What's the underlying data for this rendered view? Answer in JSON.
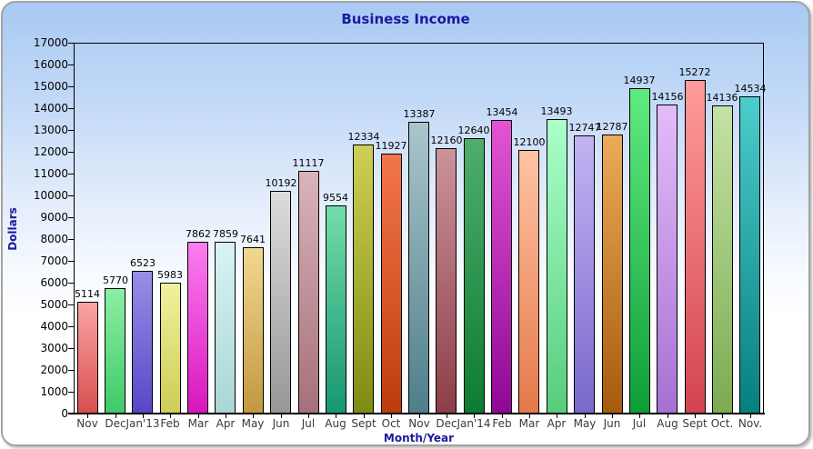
{
  "panel": {
    "background_top_color": "#a8c9f3",
    "background_bottom_color": "#ffffff",
    "border_color": "#a3a3a3"
  },
  "chart_data": {
    "type": "bar",
    "title": "Business Income",
    "xlabel": "Month/Year",
    "ylabel": "Dollars",
    "ylim": [
      0,
      17000
    ],
    "ytick_step": 1000,
    "grid": false,
    "legend": "none",
    "value_labels_shown": true,
    "title_color": "#1a1a9e",
    "axis_title_color": "#1a1a9e",
    "tick_label_color": "#000000",
    "category_label_color": "#3a3a3a",
    "bar_outline_color": "#000000",
    "categories": [
      "Nov",
      "Dec",
      "Jan'13",
      "Feb",
      "Mar",
      "Apr",
      "May",
      "Jun",
      "Jul",
      "Aug",
      "Sept",
      "Oct",
      "Nov",
      "Dec",
      "Jan'14",
      "Feb",
      "Mar",
      "Apr",
      "May",
      "Jun",
      "Jul",
      "Aug",
      "Sept",
      "Oct.",
      "Nov."
    ],
    "values": [
      5114,
      5770,
      6523,
      5983,
      7862,
      7859,
      7641,
      10192,
      11117,
      9554,
      12334,
      11927,
      13387,
      12160,
      12640,
      13454,
      12100,
      13493,
      12747,
      12787,
      14937,
      14156,
      15272,
      14136,
      14534
    ],
    "bar_gradients": [
      [
        "#fba4a4",
        "#d94f4f"
      ],
      [
        "#8cefa4",
        "#3fca68"
      ],
      [
        "#988fe6",
        "#5747c7"
      ],
      [
        "#f1f19e",
        "#cdcd57"
      ],
      [
        "#fb7ef0",
        "#d916bd"
      ],
      [
        "#d9f3f3",
        "#a9d6d6"
      ],
      [
        "#f1d791",
        "#c3983f"
      ],
      [
        "#dcdcdc",
        "#979797"
      ],
      [
        "#dab3ba",
        "#a6707a"
      ],
      [
        "#73dcaa",
        "#189672"
      ],
      [
        "#cdd054",
        "#7f8c12"
      ],
      [
        "#f3764a",
        "#bb3d0f"
      ],
      [
        "#aac6cb",
        "#4f7e8b"
      ],
      [
        "#cb939b",
        "#8d3e48"
      ],
      [
        "#4fae6d",
        "#0c7c31"
      ],
      [
        "#e354d4",
        "#8f0795"
      ],
      [
        "#ffc3a3",
        "#e5794b"
      ],
      [
        "#abffca",
        "#57cd7c"
      ],
      [
        "#c3b3f3",
        "#7a68cb"
      ],
      [
        "#ecaa5b",
        "#a65b0c"
      ],
      [
        "#5feb7f",
        "#0e9e38"
      ],
      [
        "#e3bcf9",
        "#a671d3"
      ],
      [
        "#ff9b9b",
        "#d34352"
      ],
      [
        "#c4e2a4",
        "#7cab52"
      ],
      [
        "#4ccccc",
        "#067f7f"
      ]
    ]
  }
}
